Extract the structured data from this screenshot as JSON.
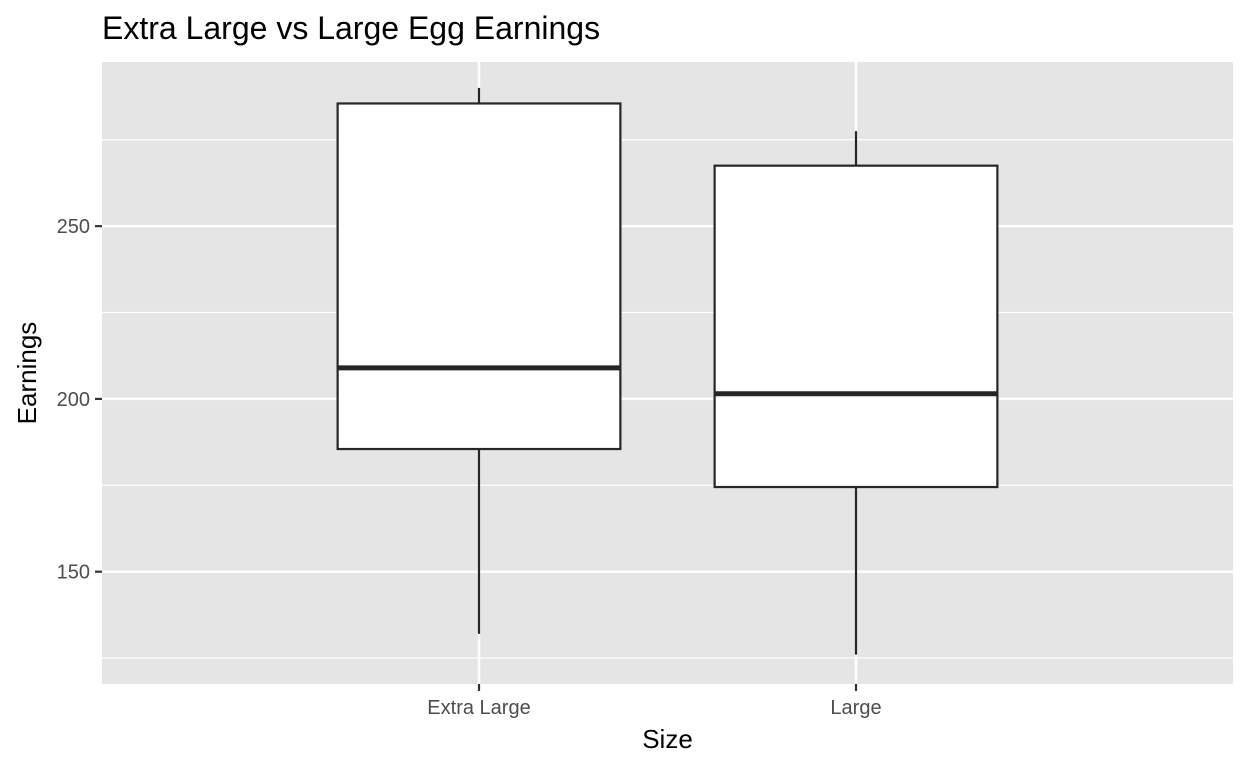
{
  "chart_data": {
    "type": "boxplot",
    "title": "Extra Large vs Large Egg Earnings",
    "xlabel": "Size",
    "ylabel": "Earnings",
    "categories": [
      "Extra Large",
      "Large"
    ],
    "boxes": [
      {
        "category": "Extra Large",
        "min": 132,
        "q1": 185.5,
        "median": 209,
        "q3": 285.5,
        "max": 290
      },
      {
        "category": "Large",
        "min": 126,
        "q1": 174.5,
        "median": 201.5,
        "q3": 267.5,
        "max": 277.5
      }
    ],
    "ylim": [
      117.5,
      297.5
    ],
    "yticks": [
      150,
      200,
      250
    ],
    "y_minor_gridlines": [
      125,
      175,
      225,
      275
    ],
    "grid": true,
    "legend": "none",
    "colors": {
      "panel_background": "#e5e5e5",
      "gridline": "#ffffff",
      "box_fill": "#ffffff",
      "box_stroke": "#262626",
      "tick_mark": "#333333"
    }
  }
}
